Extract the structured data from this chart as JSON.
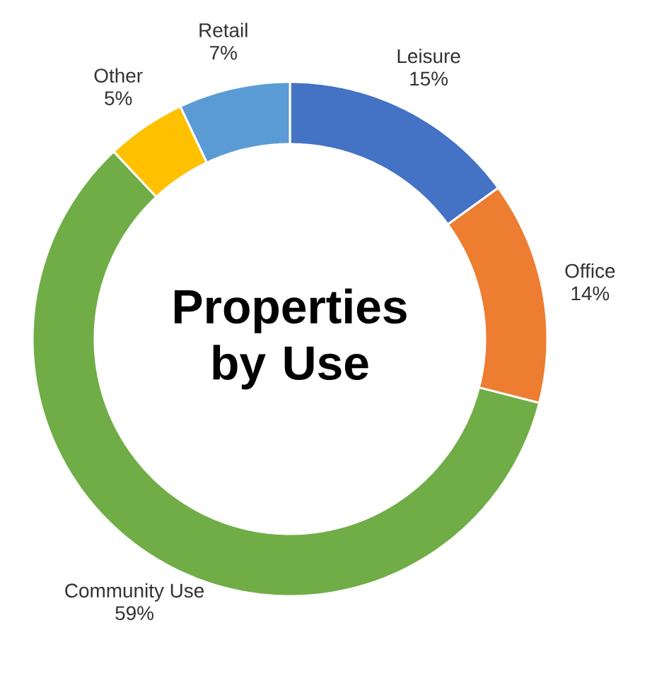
{
  "chart_data": {
    "type": "donut",
    "title": "Properties by Use",
    "categories": [
      "Leisure",
      "Office",
      "Community Use",
      "Other",
      "Retail"
    ],
    "values": [
      15,
      14,
      59,
      5,
      7
    ],
    "value_labels": [
      "15%",
      "14%",
      "59%",
      "5%",
      "7%"
    ],
    "colors": [
      "#4472c4",
      "#ed7d31",
      "#70ad47",
      "#ffc000",
      "#5b9bd5"
    ]
  }
}
